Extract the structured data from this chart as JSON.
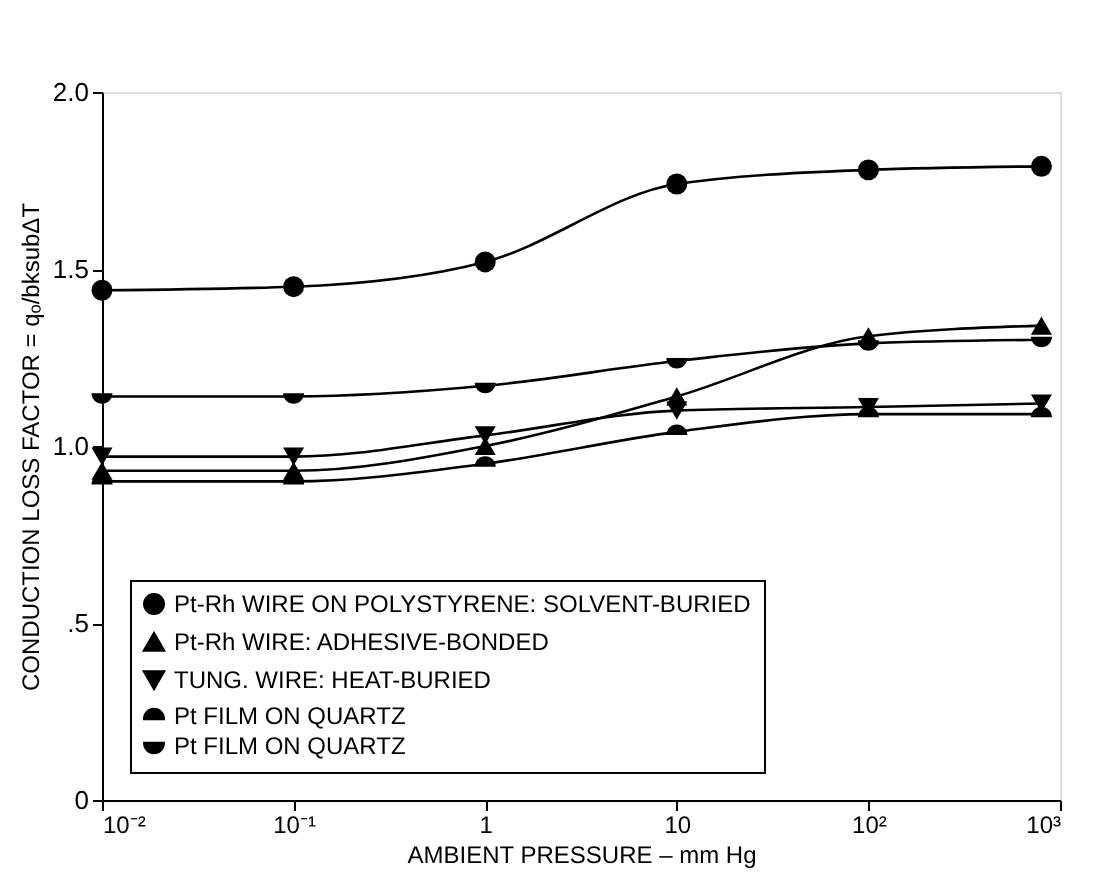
{
  "chart_data": {
    "type": "line",
    "xlabel": "AMBIENT PRESSURE – mm Hg",
    "ylabel": "CONDUCTION LOSS FACTOR = qₒ/bksubΔT",
    "x": [
      0.01,
      0.1,
      1,
      10,
      100,
      800
    ],
    "log": "x",
    "xlim": [
      0.01,
      1000
    ],
    "xticks": [
      {
        "value": 0.01,
        "label": "10⁻²"
      },
      {
        "value": 0.1,
        "label": "10⁻¹"
      },
      1,
      10,
      {
        "value": 100,
        "label": "10²"
      },
      {
        "value": 1000,
        "label": "10³"
      }
    ],
    "ylim": [
      0,
      2
    ],
    "yticks": [
      {
        "value": 0,
        "label": "0"
      },
      {
        "value": 0.5,
        "label": ".5"
      },
      {
        "value": 1,
        "label": "1.0"
      },
      {
        "value": 1.5,
        "label": "1.5"
      },
      {
        "value": 2,
        "label": "2.0"
      }
    ],
    "grid": false,
    "legend": "bottom left",
    "series": [
      {
        "name": "Pt-Rh WIRE ON POLYSTYRENE: SOLVENT-BURIED",
        "color": "#000000",
        "marker": "circle",
        "values": [
          1.44,
          1.45,
          1.52,
          1.74,
          1.78,
          1.79
        ]
      },
      {
        "name": "Pt-Rh WIRE: ADHESIVE-BONDED",
        "color": "#000000",
        "marker": "triangle",
        "values": [
          0.93,
          0.93,
          1.0,
          1.14,
          1.31,
          1.34
        ]
      },
      {
        "name": "TUNG. WIRE: HEAT-BURIED",
        "color": "#000000",
        "marker": "triangle-down",
        "values": [
          0.97,
          0.97,
          1.03,
          1.1,
          1.11,
          1.12
        ]
      },
      {
        "name": "Pt FILM ON QUARTZ",
        "color": "#000000",
        "marker": "half-circle-up",
        "values": [
          0.9,
          0.9,
          0.95,
          1.04,
          1.09,
          1.09
        ]
      },
      {
        "name": "Pt FILM ON QUARTZ",
        "color": "#000000",
        "marker": "half-circle-down",
        "values": [
          1.14,
          1.14,
          1.17,
          1.24,
          1.29,
          1.3
        ]
      }
    ]
  }
}
